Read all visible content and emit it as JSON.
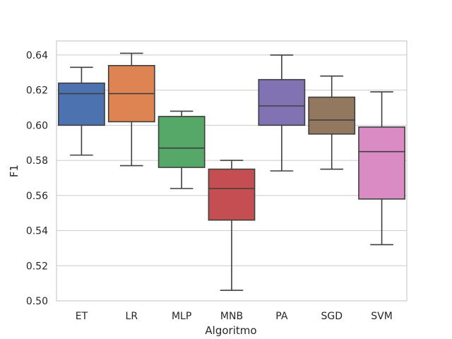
{
  "chart_data": {
    "type": "box",
    "title": "",
    "xlabel": "Algoritmo",
    "ylabel": "F1",
    "ylim": [
      0.5,
      0.648
    ],
    "yticks": [
      "0.50",
      "0.52",
      "0.54",
      "0.56",
      "0.58",
      "0.60",
      "0.62",
      "0.64"
    ],
    "grid": "horizontal",
    "categories": [
      "ET",
      "LR",
      "MLP",
      "MNB",
      "PA",
      "SGD",
      "SVM"
    ],
    "boxes": [
      {
        "category": "ET",
        "color": "#4c72b0",
        "whisker_low": 0.583,
        "q1": 0.6,
        "median": 0.618,
        "q3": 0.624,
        "whisker_high": 0.633
      },
      {
        "category": "LR",
        "color": "#dd8452",
        "whisker_low": 0.577,
        "q1": 0.602,
        "median": 0.618,
        "q3": 0.634,
        "whisker_high": 0.641
      },
      {
        "category": "MLP",
        "color": "#55a868",
        "whisker_low": 0.564,
        "q1": 0.576,
        "median": 0.587,
        "q3": 0.605,
        "whisker_high": 0.608
      },
      {
        "category": "MNB",
        "color": "#c44e52",
        "whisker_low": 0.506,
        "q1": 0.546,
        "median": 0.564,
        "q3": 0.575,
        "whisker_high": 0.58
      },
      {
        "category": "PA",
        "color": "#8172b3",
        "whisker_low": 0.574,
        "q1": 0.6,
        "median": 0.611,
        "q3": 0.626,
        "whisker_high": 0.64
      },
      {
        "category": "SGD",
        "color": "#937860",
        "whisker_low": 0.575,
        "q1": 0.595,
        "median": 0.603,
        "q3": 0.616,
        "whisker_high": 0.628
      },
      {
        "category": "SVM",
        "color": "#da8bc3",
        "whisker_low": 0.532,
        "q1": 0.558,
        "median": 0.585,
        "q3": 0.599,
        "whisker_high": 0.619
      }
    ]
  }
}
